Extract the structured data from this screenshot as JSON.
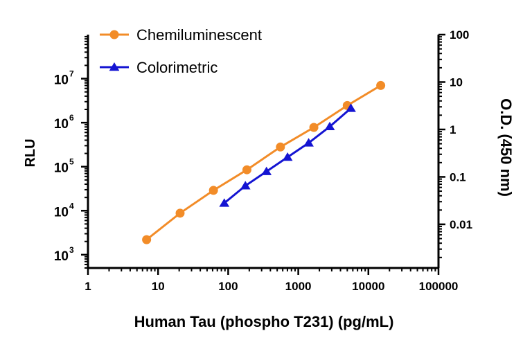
{
  "chart_data": {
    "type": "line",
    "title": "",
    "xlabel": "Human Tau (phospho T231) (pg/mL)",
    "ylabel_left": "RLU",
    "ylabel_right": "O.D. (450 nm)",
    "x_scale": "log",
    "y_left_scale": "log",
    "y_right_scale": "log",
    "xlim": [
      1,
      100000
    ],
    "ylim_left": [
      500,
      100000000
    ],
    "ylim_right": [
      0.0012,
      100
    ],
    "x_ticks": [
      {
        "value": 1,
        "label": "1"
      },
      {
        "value": 10,
        "label": "10"
      },
      {
        "value": 100,
        "label": "100"
      },
      {
        "value": 1000,
        "label": "1000"
      },
      {
        "value": 10000,
        "label": "10000"
      },
      {
        "value": 100000,
        "label": "100000"
      }
    ],
    "y_left_ticks": [
      {
        "value": 1000,
        "base": "10",
        "exp": "3"
      },
      {
        "value": 10000,
        "base": "10",
        "exp": "4"
      },
      {
        "value": 100000,
        "base": "10",
        "exp": "5"
      },
      {
        "value": 1000000,
        "base": "10",
        "exp": "6"
      },
      {
        "value": 10000000,
        "base": "10",
        "exp": "7"
      }
    ],
    "y_right_ticks": [
      {
        "value": 0.01,
        "label": "0.01"
      },
      {
        "value": 0.1,
        "label": "0.1"
      },
      {
        "value": 1,
        "label": "1"
      },
      {
        "value": 10,
        "label": "10"
      },
      {
        "value": 100,
        "label": "100"
      }
    ],
    "legend_position": "top-left",
    "grid": false,
    "series": [
      {
        "name": "Chemiluminescent",
        "axis": "left",
        "color": "#f28c28",
        "marker": "circle",
        "x": [
          6.86,
          20.6,
          61.7,
          185,
          556,
          1667,
          5000,
          15000
        ],
        "y": [
          2200,
          8800,
          29000,
          85000,
          280000,
          780000,
          2450000,
          7000000
        ]
      },
      {
        "name": "Colorimetric",
        "axis": "right",
        "color": "#1414d2",
        "marker": "triangle",
        "x": [
          88,
          176,
          352,
          703,
          1406,
          2813,
          5625
        ],
        "y": [
          0.028,
          0.065,
          0.13,
          0.26,
          0.52,
          1.15,
          2.8
        ]
      }
    ]
  }
}
